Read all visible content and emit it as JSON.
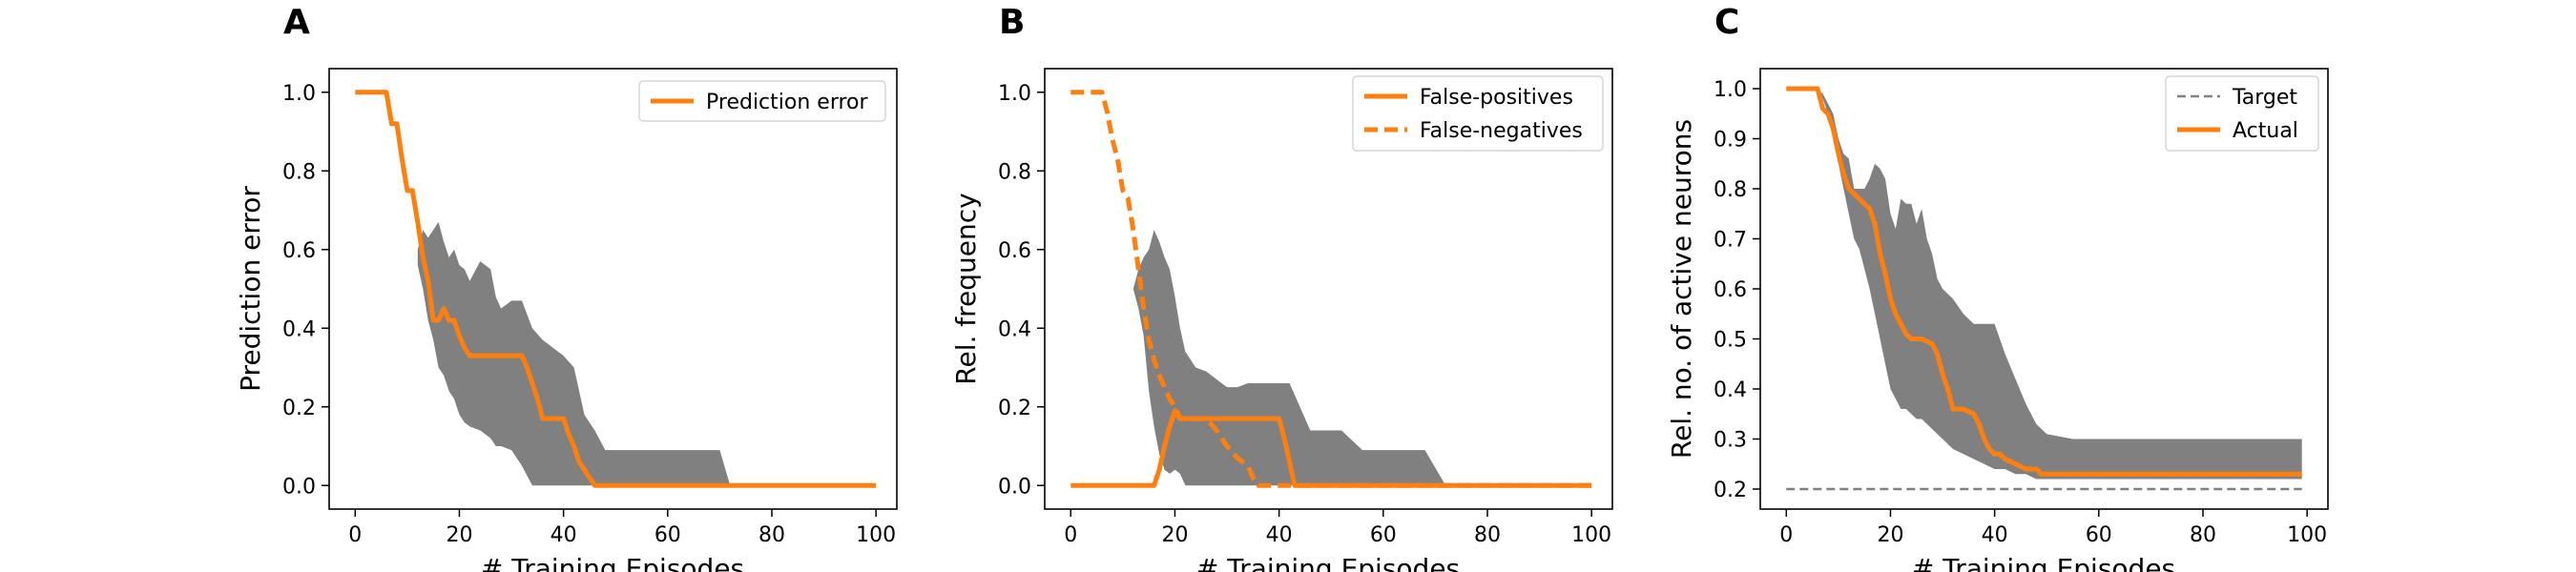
{
  "colors": {
    "orange": "#ff7f0e",
    "band": "#808080",
    "target": "#808080"
  },
  "chart_data": [
    {
      "type": "line",
      "panel_letter": "A",
      "xlabel": "# Training Episodes",
      "ylabel": "Prediction error",
      "xlim": [
        -5,
        104
      ],
      "ylim": [
        -0.06,
        1.06
      ],
      "xticks": [
        0,
        20,
        40,
        60,
        80,
        100
      ],
      "yticks": [
        0.0,
        0.2,
        0.4,
        0.6,
        0.8,
        1.0
      ],
      "ytick_labels": [
        "0.0",
        "0.2",
        "0.4",
        "0.6",
        "0.8",
        "1.0"
      ],
      "legend": "top-right",
      "band": {
        "x": [
          12,
          13,
          14,
          15,
          16,
          17,
          18,
          19,
          20,
          21,
          22,
          24,
          25,
          26,
          27,
          28,
          30,
          32,
          34,
          36,
          38,
          40,
          42,
          44,
          46,
          48,
          50,
          52,
          55,
          60,
          65,
          70,
          72
        ],
        "upper": [
          0.6,
          0.65,
          0.63,
          0.65,
          0.67,
          0.62,
          0.58,
          0.6,
          0.56,
          0.55,
          0.52,
          0.57,
          0.56,
          0.55,
          0.48,
          0.45,
          0.47,
          0.47,
          0.4,
          0.37,
          0.35,
          0.33,
          0.3,
          0.18,
          0.14,
          0.09,
          0.09,
          0.09,
          0.09,
          0.09,
          0.09,
          0.09,
          0.0
        ],
        "lower": [
          0.56,
          0.5,
          0.42,
          0.37,
          0.3,
          0.28,
          0.24,
          0.22,
          0.18,
          0.16,
          0.15,
          0.14,
          0.13,
          0.12,
          0.1,
          0.1,
          0.09,
          0.05,
          0.0,
          0.0,
          0.0,
          0.0,
          0.0,
          0.0,
          0.0,
          0.0,
          0.0,
          0.0,
          0.0,
          0.0,
          0.0,
          0.0,
          0.0
        ]
      },
      "series": [
        {
          "name": "Prediction error",
          "style": "solid",
          "x": [
            0,
            6,
            7,
            8,
            9,
            10,
            11,
            12,
            13,
            14,
            15,
            16,
            17,
            18,
            19,
            20,
            21,
            22,
            32,
            33,
            34,
            35,
            36,
            37,
            38,
            39,
            40,
            41,
            42,
            43,
            44,
            45,
            46,
            47,
            100
          ],
          "y": [
            1.0,
            1.0,
            0.92,
            0.92,
            0.83,
            0.75,
            0.75,
            0.67,
            0.58,
            0.52,
            0.42,
            0.42,
            0.45,
            0.42,
            0.42,
            0.38,
            0.35,
            0.33,
            0.33,
            0.3,
            0.26,
            0.22,
            0.17,
            0.17,
            0.17,
            0.17,
            0.17,
            0.13,
            0.1,
            0.06,
            0.04,
            0.02,
            0.0,
            0.0,
            0.0
          ]
        }
      ]
    },
    {
      "type": "line",
      "panel_letter": "B",
      "xlabel": "# Training Episodes",
      "ylabel": "Rel. frequency",
      "xlim": [
        -5,
        104
      ],
      "ylim": [
        -0.06,
        1.06
      ],
      "xticks": [
        0,
        20,
        40,
        60,
        80,
        100
      ],
      "yticks": [
        0.0,
        0.2,
        0.4,
        0.6,
        0.8,
        1.0
      ],
      "ytick_labels": [
        "0.0",
        "0.2",
        "0.4",
        "0.6",
        "0.8",
        "1.0"
      ],
      "legend": "top-right",
      "band": {
        "x": [
          12,
          13,
          14,
          15,
          16,
          17,
          18,
          19,
          20,
          21,
          22,
          24,
          26,
          28,
          30,
          32,
          34,
          36,
          38,
          40,
          42,
          44,
          46,
          48,
          52,
          56,
          60,
          64,
          68,
          72
        ],
        "upper": [
          0.5,
          0.55,
          0.58,
          0.6,
          0.65,
          0.62,
          0.58,
          0.55,
          0.48,
          0.4,
          0.34,
          0.3,
          0.29,
          0.27,
          0.25,
          0.25,
          0.26,
          0.26,
          0.26,
          0.26,
          0.26,
          0.2,
          0.14,
          0.14,
          0.14,
          0.09,
          0.09,
          0.09,
          0.09,
          0.0
        ],
        "lower": [
          0.5,
          0.45,
          0.38,
          0.24,
          0.15,
          0.08,
          0.04,
          0.03,
          0.04,
          0.03,
          0.0,
          0.0,
          0.0,
          0.0,
          0.0,
          0.0,
          0.0,
          0.0,
          0.0,
          0.0,
          0.0,
          0.0,
          0.0,
          0.0,
          0.0,
          0.0,
          0.0,
          0.0,
          0.0,
          0.0
        ]
      },
      "series": [
        {
          "name": "False-positives",
          "style": "solid",
          "x": [
            0,
            16,
            17,
            18,
            19,
            20,
            21,
            22,
            38,
            39,
            40,
            41,
            42,
            43,
            100
          ],
          "y": [
            0.0,
            0.0,
            0.04,
            0.1,
            0.15,
            0.19,
            0.17,
            0.17,
            0.17,
            0.17,
            0.17,
            0.12,
            0.06,
            0.0,
            0.0
          ]
        },
        {
          "name": "False-negatives",
          "style": "dashed",
          "x": [
            0,
            5,
            6,
            7,
            8,
            9,
            10,
            11,
            12,
            13,
            14,
            15,
            16,
            17,
            18,
            19,
            20,
            21,
            22,
            26,
            28,
            30,
            32,
            34,
            35,
            36,
            37,
            100
          ],
          "y": [
            1.0,
            1.0,
            1.0,
            0.95,
            0.88,
            0.83,
            0.75,
            0.73,
            0.65,
            0.55,
            0.45,
            0.37,
            0.32,
            0.28,
            0.25,
            0.22,
            0.2,
            0.17,
            0.17,
            0.17,
            0.14,
            0.1,
            0.07,
            0.05,
            0.02,
            0.0,
            0.0,
            0.0
          ]
        }
      ]
    },
    {
      "type": "line",
      "panel_letter": "C",
      "xlabel": "# Training Episodes",
      "ylabel": "Rel. no. of active neurons",
      "xlim": [
        -5,
        104
      ],
      "ylim": [
        0.16,
        1.04
      ],
      "xticks": [
        0,
        20,
        40,
        60,
        80,
        100
      ],
      "yticks": [
        0.2,
        0.3,
        0.4,
        0.5,
        0.6,
        0.7,
        0.8,
        0.9,
        1.0
      ],
      "ytick_labels": [
        "0.2",
        "0.3",
        "0.4",
        "0.5",
        "0.6",
        "0.7",
        "0.8",
        "0.9",
        "1.0"
      ],
      "legend": "top-right",
      "band": {
        "x": [
          6,
          7,
          8,
          9,
          10,
          11,
          12,
          13,
          14,
          15,
          16,
          17,
          18,
          19,
          20,
          21,
          22,
          23,
          24,
          25,
          26,
          27,
          28,
          29,
          30,
          32,
          34,
          36,
          38,
          40,
          42,
          44,
          46,
          48,
          50,
          55,
          60,
          70,
          80,
          90,
          99
        ],
        "upper": [
          1.0,
          0.99,
          0.97,
          0.95,
          0.9,
          0.87,
          0.86,
          0.8,
          0.8,
          0.8,
          0.82,
          0.85,
          0.84,
          0.82,
          0.75,
          0.72,
          0.78,
          0.77,
          0.77,
          0.73,
          0.76,
          0.7,
          0.67,
          0.62,
          0.6,
          0.58,
          0.55,
          0.53,
          0.53,
          0.53,
          0.47,
          0.42,
          0.37,
          0.33,
          0.31,
          0.3,
          0.3,
          0.3,
          0.3,
          0.3,
          0.3
        ],
        "lower": [
          1.0,
          0.98,
          0.95,
          0.92,
          0.85,
          0.8,
          0.75,
          0.7,
          0.68,
          0.64,
          0.6,
          0.55,
          0.5,
          0.45,
          0.4,
          0.38,
          0.36,
          0.36,
          0.35,
          0.34,
          0.34,
          0.33,
          0.32,
          0.31,
          0.3,
          0.28,
          0.27,
          0.26,
          0.25,
          0.24,
          0.24,
          0.23,
          0.23,
          0.22,
          0.22,
          0.22,
          0.22,
          0.22,
          0.22,
          0.22,
          0.22
        ]
      },
      "series": [
        {
          "name": "Target",
          "style": "dashed-thin",
          "x": [
            0,
            99
          ],
          "y": [
            0.2,
            0.2
          ]
        },
        {
          "name": "Actual",
          "style": "solid",
          "x": [
            0,
            6,
            7,
            8,
            9,
            10,
            11,
            12,
            13,
            16,
            17,
            18,
            19,
            20,
            21,
            22,
            23,
            24,
            26,
            28,
            29,
            30,
            31,
            32,
            33,
            34,
            36,
            37,
            38,
            39,
            40,
            41,
            42,
            44,
            46,
            48,
            49,
            50,
            99
          ],
          "y": [
            1.0,
            1.0,
            0.96,
            0.95,
            0.92,
            0.87,
            0.83,
            0.8,
            0.79,
            0.76,
            0.73,
            0.67,
            0.63,
            0.58,
            0.55,
            0.53,
            0.51,
            0.5,
            0.5,
            0.49,
            0.47,
            0.43,
            0.4,
            0.36,
            0.36,
            0.36,
            0.35,
            0.33,
            0.3,
            0.28,
            0.27,
            0.27,
            0.26,
            0.25,
            0.24,
            0.24,
            0.23,
            0.23,
            0.23
          ]
        }
      ]
    }
  ]
}
